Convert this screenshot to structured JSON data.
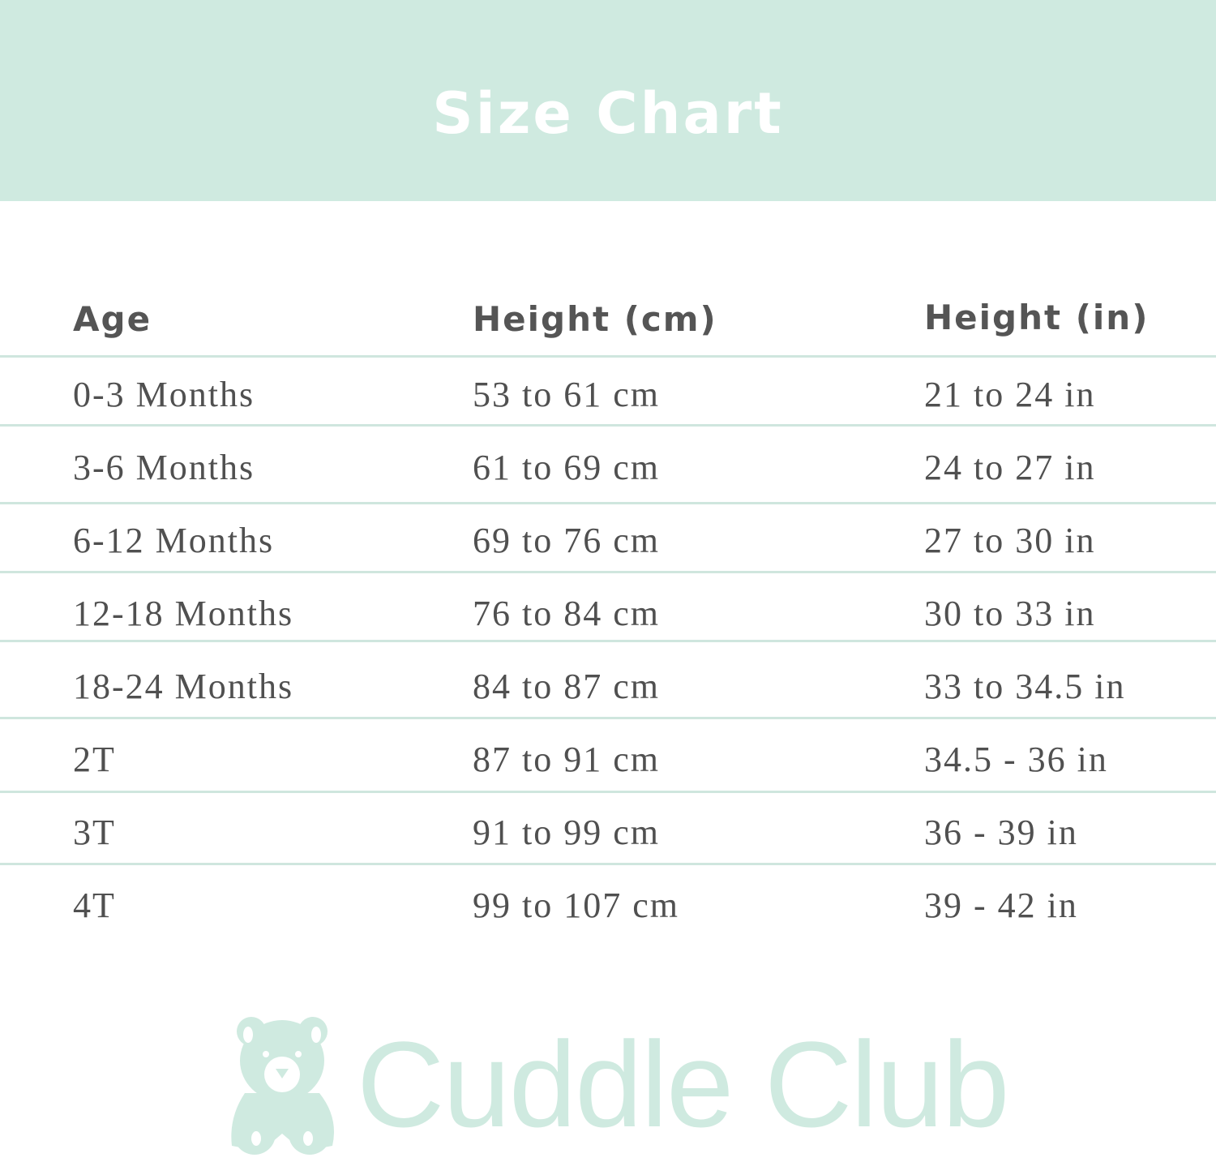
{
  "title": "Size Chart",
  "columns": [
    "Age",
    "Height (cm)",
    "Height (in)"
  ],
  "rows": [
    [
      "0-3 Months",
      "53 to 61 cm",
      "21 to 24 in"
    ],
    [
      "3-6 Months",
      "61 to 69 cm",
      "24 to 27 in"
    ],
    [
      "6-12 Months",
      "69 to 76 cm",
      "27 to 30 in"
    ],
    [
      "12-18 Months",
      "76 to 84 cm",
      "30 to 33 in"
    ],
    [
      "18-24 Months",
      "84 to 87 cm",
      "33 to 34.5 in"
    ],
    [
      "2T",
      "87 to 91 cm",
      "34.5 - 36 in"
    ],
    [
      "3T",
      "91 to 99 cm",
      "36 - 39 in"
    ],
    [
      "4T",
      "99 to 107 cm",
      "39 - 42 in"
    ]
  ],
  "brand": {
    "name": "Cuddle Club",
    "logo_icon": "teddy-bear-icon",
    "color": "#cfeae0"
  },
  "colors": {
    "banner": "#cfeae0",
    "text": "#555555",
    "divider": "#cfe6de"
  }
}
